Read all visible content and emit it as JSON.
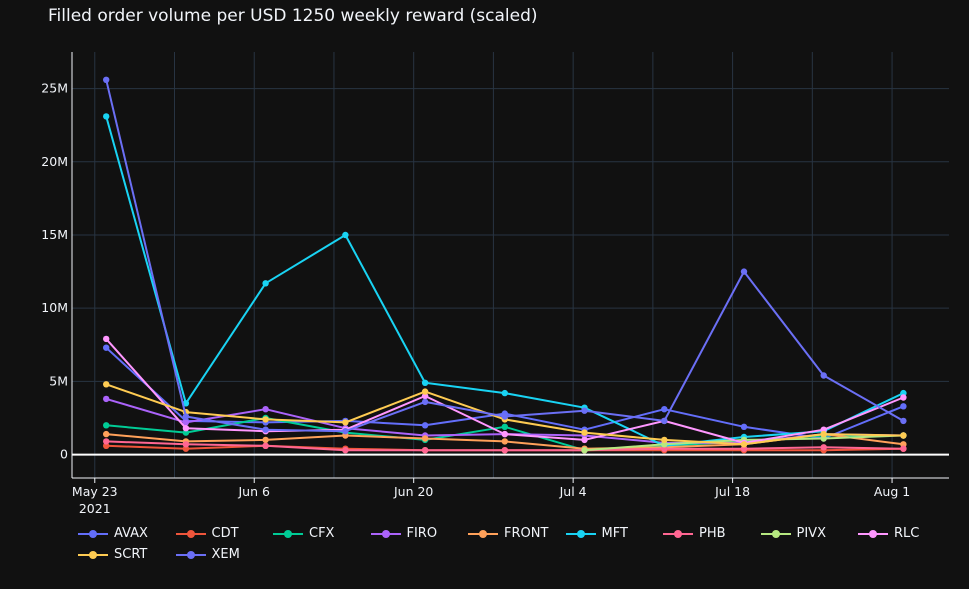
{
  "chart_data": {
    "type": "line",
    "title": "Filled order volume per USD 1250 weekly reward (scaled)",
    "xlabel": "",
    "ylabel": "",
    "x": [
      "2021-05-24",
      "2021-05-31",
      "2021-06-07",
      "2021-06-14",
      "2021-06-21",
      "2021-06-28",
      "2021-07-05",
      "2021-07-12",
      "2021-07-19",
      "2021-07-26",
      "2021-08-02"
    ],
    "x_ticks": [
      {
        "date": "2021-05-23",
        "label": "May 23",
        "sublabel": "2021"
      },
      {
        "date": "2021-06-06",
        "label": "Jun 6",
        "sublabel": ""
      },
      {
        "date": "2021-06-20",
        "label": "Jun 20",
        "sublabel": ""
      },
      {
        "date": "2021-07-04",
        "label": "Jul 4",
        "sublabel": ""
      },
      {
        "date": "2021-07-18",
        "label": "Jul 18",
        "sublabel": ""
      },
      {
        "date": "2021-08-01",
        "label": "Aug 1",
        "sublabel": ""
      }
    ],
    "xlim": [
      "2021-05-21",
      "2021-08-06"
    ],
    "ylim": [
      -1600000,
      27500000
    ],
    "y_ticks": [
      {
        "value": 0,
        "label": "0"
      },
      {
        "value": 5000000,
        "label": "5M"
      },
      {
        "value": 10000000,
        "label": "10M"
      },
      {
        "value": 15000000,
        "label": "15M"
      },
      {
        "value": 20000000,
        "label": "20M"
      },
      {
        "value": 25000000,
        "label": "25M"
      }
    ],
    "grid": true,
    "legend_position": "bottom",
    "series": [
      {
        "name": "AVAX",
        "color": "#636efa",
        "values": [
          7300000,
          2300000,
          2200000,
          2300000,
          2000000,
          2800000,
          1700000,
          3100000,
          1900000,
          1100000,
          3300000
        ]
      },
      {
        "name": "CDT",
        "color": "#ef553b",
        "values": [
          600000,
          400000,
          600000,
          400000,
          300000,
          300000,
          300000,
          300000,
          300000,
          300000,
          400000
        ]
      },
      {
        "name": "CFX",
        "color": "#00cc96",
        "values": [
          2000000,
          1500000,
          2500000,
          1500000,
          1000000,
          1900000,
          300000,
          600000,
          900000,
          1300000,
          1300000
        ]
      },
      {
        "name": "FIRO",
        "color": "#ab63fa",
        "values": [
          3800000,
          2200000,
          3100000,
          1800000,
          1300000,
          1400000,
          1300000,
          800000,
          800000,
          1400000,
          1300000
        ]
      },
      {
        "name": "FRONT",
        "color": "#ffa15a",
        "values": [
          1400000,
          900000,
          1000000,
          1300000,
          1100000,
          900000,
          400000,
          500000,
          700000,
          1400000,
          700000
        ]
      },
      {
        "name": "MFT",
        "color": "#19d3f3",
        "values": [
          23100000,
          3500000,
          11700000,
          15000000,
          4900000,
          4200000,
          3200000,
          600000,
          1200000,
          1600000,
          4200000
        ]
      },
      {
        "name": "PHB",
        "color": "#ff6692",
        "values": [
          900000,
          700000,
          600000,
          300000,
          300000,
          300000,
          300000,
          400000,
          400000,
          500000,
          400000
        ]
      },
      {
        "name": "PIVX",
        "color": "#b6e880",
        "values": [
          null,
          null,
          null,
          null,
          null,
          null,
          300000,
          700000,
          1000000,
          1100000,
          1300000
        ]
      },
      {
        "name": "RLC",
        "color": "#ff97ff",
        "values": [
          7900000,
          1800000,
          1600000,
          1700000,
          4000000,
          1400000,
          1000000,
          2300000,
          800000,
          1700000,
          3900000
        ]
      },
      {
        "name": "SCRT",
        "color": "#fecb52",
        "values": [
          4800000,
          2900000,
          2400000,
          2200000,
          4300000,
          2400000,
          1500000,
          1000000,
          700000,
          1400000,
          1300000
        ]
      },
      {
        "name": "XEM",
        "color": "#6b6ff5",
        "values": [
          25600000,
          2600000,
          1700000,
          1600000,
          3600000,
          2600000,
          3000000,
          2300000,
          12500000,
          5400000,
          2300000
        ]
      }
    ]
  }
}
